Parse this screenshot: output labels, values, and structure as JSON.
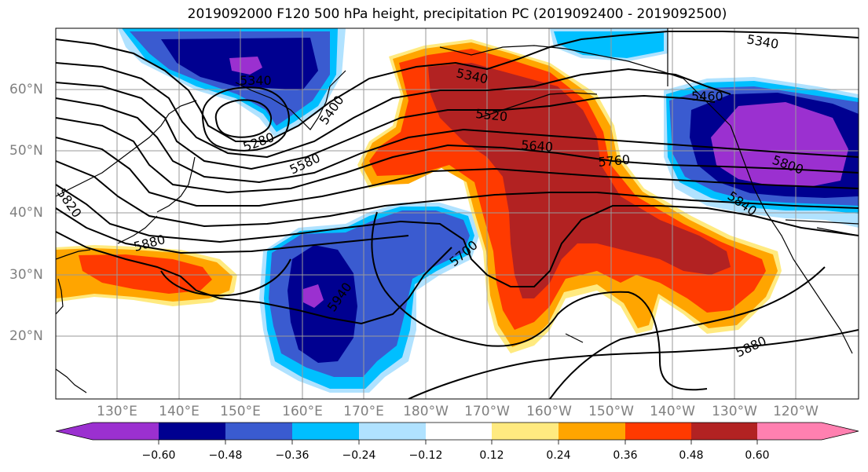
{
  "title": "2019092000 F120 500 hPa height, precipitation PC (2019092400 - 2019092500)",
  "lat_labels": [
    "60°N",
    "50°N",
    "40°N",
    "30°N",
    "20°N"
  ],
  "lon_labels": [
    "130°E",
    "140°E",
    "150°E",
    "160°E",
    "170°E",
    "180°W",
    "170°W",
    "160°W",
    "150°W",
    "140°W",
    "130°W",
    "120°W"
  ],
  "colorbar": {
    "ticks": [
      "−0.60",
      "−0.48",
      "−0.36",
      "−0.24",
      "−0.12",
      "0.12",
      "0.24",
      "0.36",
      "0.48",
      "0.60"
    ],
    "colors": [
      "#9b30d0",
      "#000090",
      "#3a5bd0",
      "#00bfff",
      "#b0e2ff",
      "#ffffff",
      "#ffea80",
      "#ffa500",
      "#ff3a00",
      "#b22222",
      "#ff80b0"
    ]
  },
  "contour_labels": [
    "5340",
    "5340",
    "5340",
    "5460",
    "5280",
    "5400",
    "5520",
    "5580",
    "5640",
    "5760",
    "5800",
    "5820",
    "5840",
    "5880",
    "5700",
    "5940",
    "5880"
  ]
}
